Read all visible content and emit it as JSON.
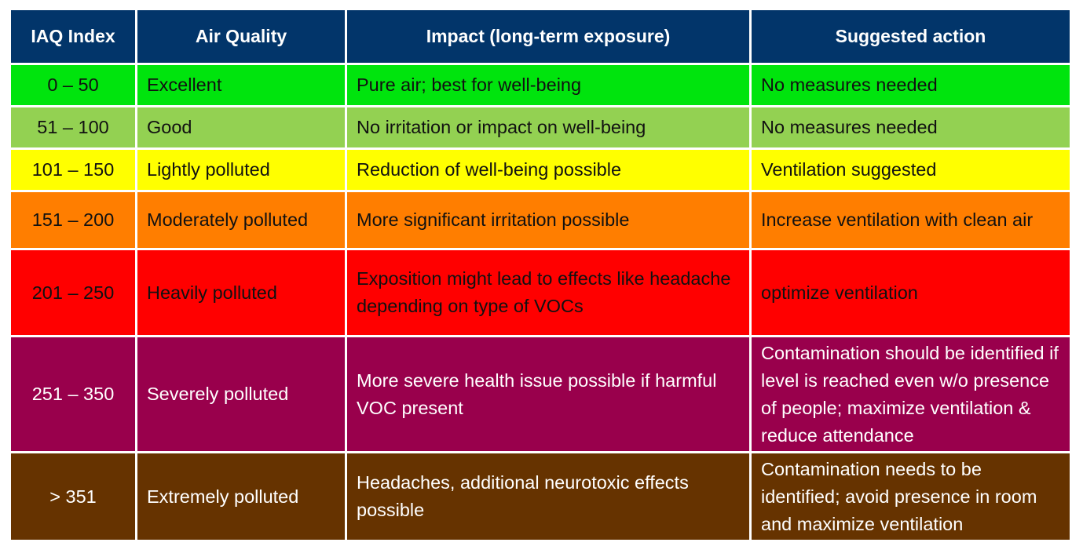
{
  "headers": [
    "IAQ Index",
    "Air Quality",
    "Impact (long-term exposure)",
    "Suggested action"
  ],
  "rows": [
    {
      "index": "0 – 50",
      "quality": "Excellent",
      "impact": "Pure air; best for well-being",
      "action": "No measures needed",
      "color": "#00e40d"
    },
    {
      "index": "51 – 100",
      "quality": "Good",
      "impact": "No irritation or impact on well-being",
      "action": "No measures needed",
      "color": "#93d152"
    },
    {
      "index": "101 – 150",
      "quality": "Lightly polluted",
      "impact": "Reduction of well-being possible",
      "action": "Ventilation suggested",
      "color": "#ffff00"
    },
    {
      "index": "151 – 200",
      "quality": "Moderately polluted",
      "impact": "More significant irritation possible",
      "action": "Increase ventilation with clean air",
      "color": "#ff7e00"
    },
    {
      "index": "201 – 250",
      "quality": "Heavily polluted",
      "impact": "Exposition might lead to effects like headache depending on type of VOCs",
      "action": "optimize ventilation",
      "color": "#ff0000"
    },
    {
      "index": "251 – 350",
      "quality": "Severely polluted",
      "impact": "More severe health issue possible if harmful VOC present",
      "action": "Contamination should be identified if level is reached even w/o presence of people; maximize ventilation & reduce attendance",
      "color": "#99004c"
    },
    {
      "index": "> 351",
      "quality": "Extremely polluted",
      "impact": "Headaches, additional neurotoxic effects possible",
      "action": "Contamination needs to be identified; avoid presence in room and maximize ventilation",
      "color": "#663300"
    }
  ],
  "colors": {
    "header_bg": "#02356a",
    "header_text": "#ffffff"
  }
}
